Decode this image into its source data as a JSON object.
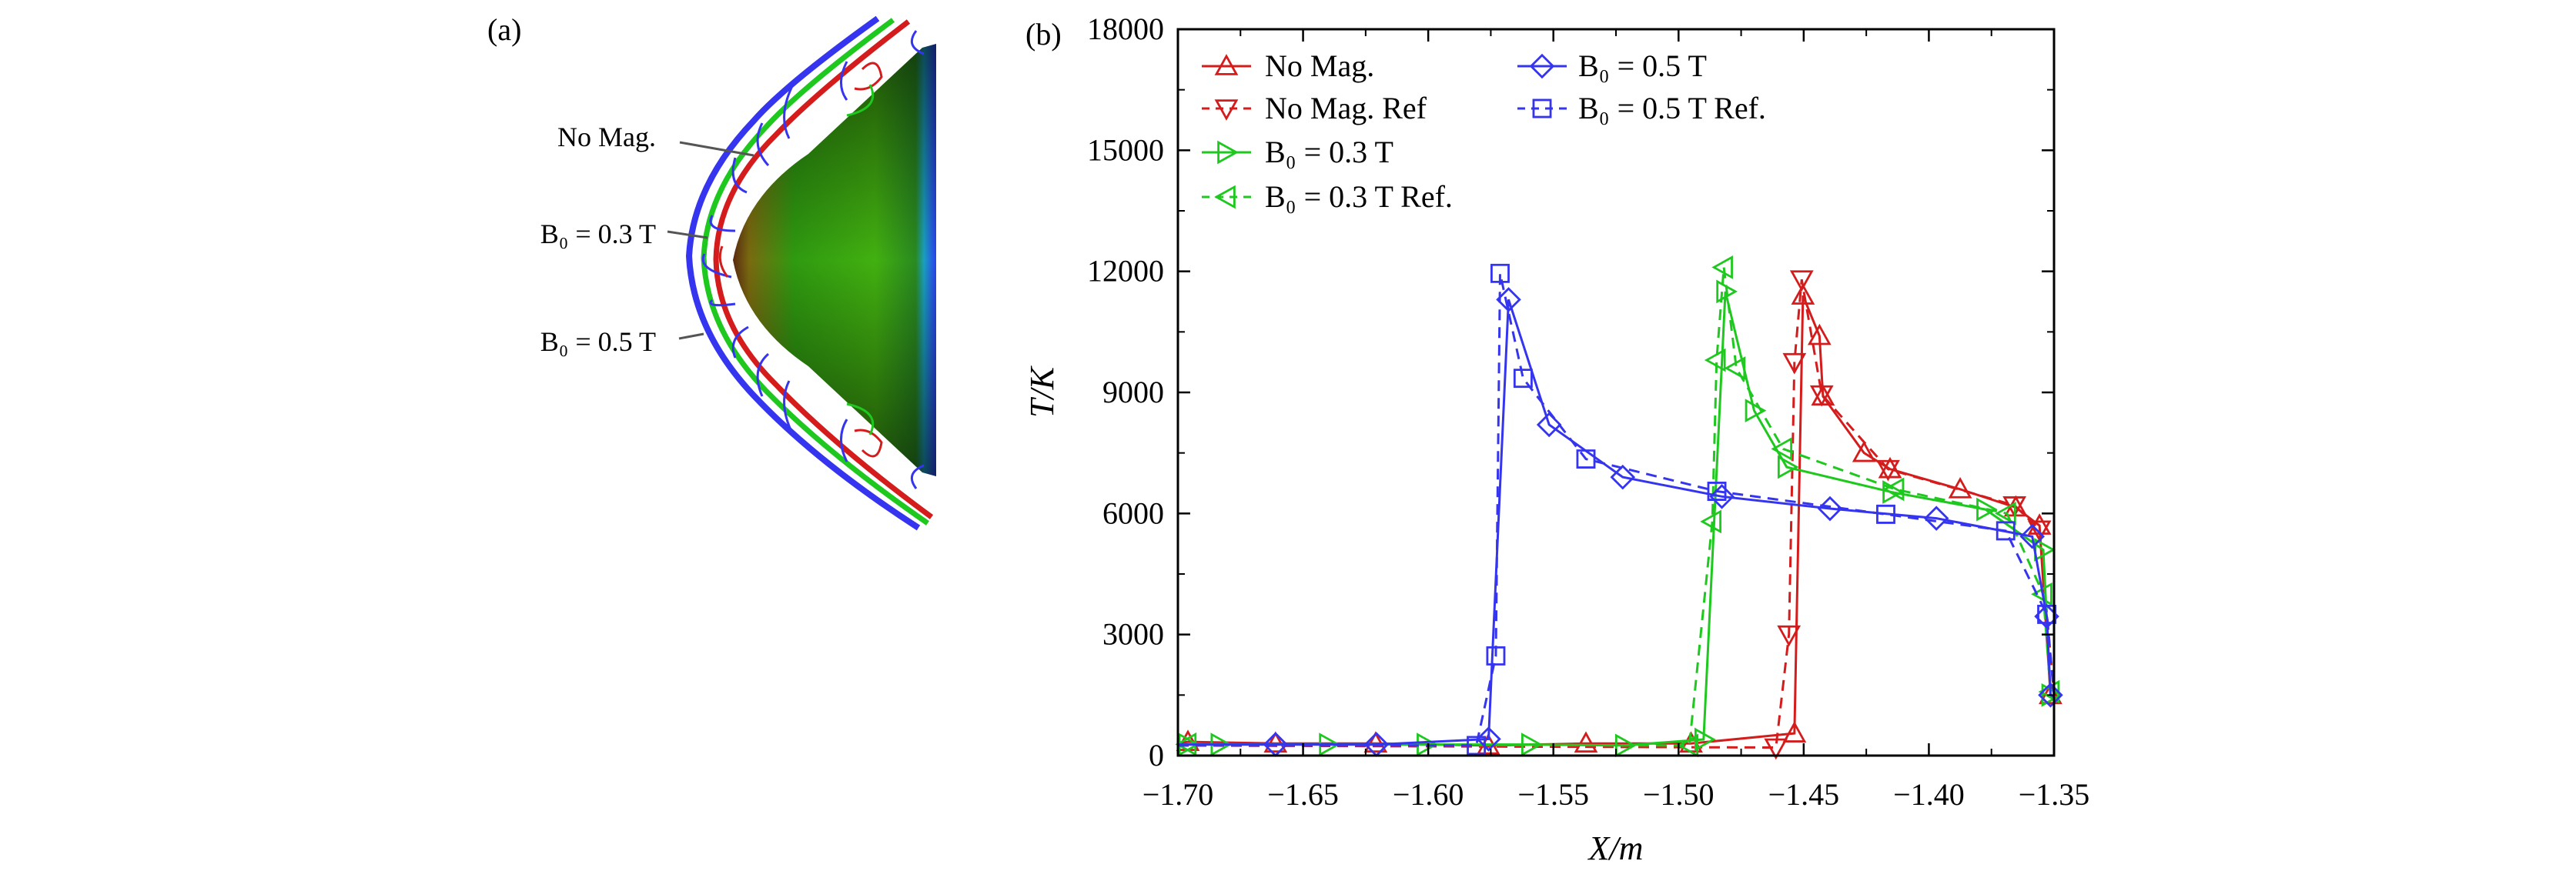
{
  "panel_a": {
    "label": "(a)",
    "annotations": [
      "No Mag.",
      "B₀ = 0.3 T",
      "B₀ = 0.5 T"
    ],
    "colors": {
      "no_mag": "#d41c1c",
      "b03": "#1ec81e",
      "b05": "#3535f0"
    }
  },
  "chart_data": {
    "type": "line",
    "panel_label": "(b)",
    "xlabel": "X/m",
    "ylabel": "T/K",
    "xlim": [
      -1.7,
      -1.35
    ],
    "ylim": [
      0,
      18000
    ],
    "xticks": [
      -1.7,
      -1.65,
      -1.6,
      -1.55,
      -1.5,
      -1.45,
      -1.4,
      -1.35
    ],
    "xtick_labels": [
      "−1.70",
      "−1.65",
      "−1.60",
      "−1.55",
      "−1.50",
      "−1.45",
      "−1.40",
      "−1.35"
    ],
    "yticks": [
      0,
      3000,
      6000,
      9000,
      12000,
      15000,
      18000
    ],
    "ytick_labels": [
      "0",
      "3000",
      "6000",
      "9000",
      "12000",
      "15000",
      "18000"
    ],
    "grid": false,
    "legend_placement": "top-left",
    "series": [
      {
        "name": "No Mag.",
        "color": "#d41c1c",
        "dash": false,
        "marker": "triangle-up",
        "x": [
          -1.7,
          -1.696,
          -1.661,
          -1.621,
          -1.576,
          -1.537,
          -1.495,
          -1.4537,
          -1.4503,
          -1.4437,
          -1.4423,
          -1.4259,
          -1.4155,
          -1.3875,
          -1.3653,
          -1.3558,
          -1.3514,
          -1.35
        ],
        "y": [
          300,
          340,
          300,
          300,
          250,
          300,
          300,
          550,
          11400,
          10400,
          8900,
          7500,
          7100,
          6600,
          6150,
          5700,
          1500,
          1400
        ]
      },
      {
        "name": "No Mag. Ref",
        "color": "#d41c1c",
        "dash": true,
        "marker": "triangle-down",
        "x": [
          -1.7,
          -1.4611,
          -1.4559,
          -1.4537,
          -1.4508,
          -1.4428,
          -1.4163,
          -1.3658,
          -1.3558,
          -1.35
        ],
        "y": [
          250,
          200,
          3000,
          9750,
          11800,
          8950,
          7100,
          6200,
          5600,
          1500
        ]
      },
      {
        "name": "B₀ = 0.3 T",
        "color": "#1ec81e",
        "dash": false,
        "marker": "triangle-right",
        "x": [
          -1.7,
          -1.6962,
          -1.6833,
          -1.64,
          -1.601,
          -1.5592,
          -1.5217,
          -1.49,
          -1.4813,
          -1.4698,
          -1.4568,
          -1.4149,
          -1.3774,
          -1.3543,
          -1.3514,
          -1.35
        ],
        "y": [
          275,
          275,
          275,
          275,
          275,
          275,
          250,
          400,
          11500,
          8550,
          7150,
          6530,
          6100,
          5100,
          1500,
          1400
        ]
      },
      {
        "name": "B₀ = 0.3 T Ref.",
        "color": "#1ec81e",
        "dash": true,
        "marker": "triangle-left",
        "x": [
          -1.7,
          -1.6962,
          -1.4957,
          -1.4865,
          -1.4848,
          -1.4819,
          -1.4769,
          -1.4582,
          -1.4135,
          -1.3688,
          -1.3543,
          -1.3514,
          -1.35
        ],
        "y": [
          250,
          280,
          250,
          5800,
          9800,
          12100,
          9600,
          7600,
          6600,
          6000,
          4000,
          1580,
          1450
        ]
      },
      {
        "name": "B₀ = 0.5 T",
        "color": "#3535f0",
        "dash": false,
        "marker": "diamond",
        "x": [
          -1.7,
          -1.661,
          -1.6207,
          -1.5759,
          -1.5679,
          -1.5517,
          -1.5223,
          -1.4827,
          -1.4395,
          -1.397,
          -1.3587,
          -1.3529,
          -1.3514,
          -1.35
        ],
        "y": [
          275,
          275,
          275,
          410,
          11300,
          8200,
          6900,
          6420,
          6120,
          5880,
          5430,
          3450,
          1500,
          1450
        ]
      },
      {
        "name": "B₀ = 0.5 T Ref.",
        "color": "#3535f0",
        "dash": true,
        "marker": "square",
        "x": [
          -1.7,
          -1.5808,
          -1.573,
          -1.5713,
          -1.5621,
          -1.537,
          -1.4847,
          -1.4172,
          -1.3693,
          -1.3529,
          -1.35
        ],
        "y": [
          250,
          250,
          2470,
          11950,
          9350,
          7350,
          6550,
          5980,
          5570,
          3500,
          1500
        ]
      }
    ]
  }
}
